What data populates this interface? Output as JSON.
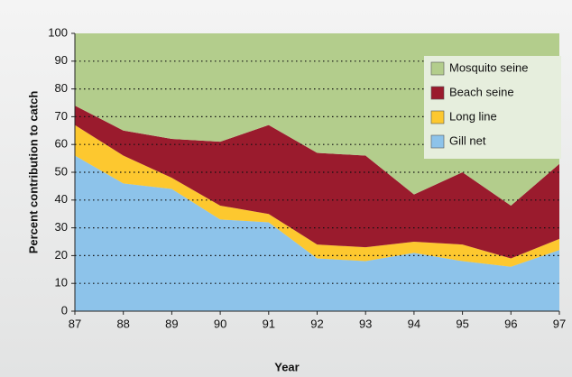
{
  "chart_data": {
    "type": "stacked_area",
    "x_label": "Year",
    "y_label": "Percent contribution to catch",
    "categories": [
      "87",
      "88",
      "89",
      "90",
      "91",
      "92",
      "93",
      "94",
      "95",
      "96",
      "97"
    ],
    "series": [
      {
        "name": "Gill net",
        "color": "#8dc3ea",
        "values": [
          56,
          46,
          44,
          33,
          32,
          19,
          18,
          21,
          18,
          16,
          22
        ]
      },
      {
        "name": "Long line",
        "color": "#fdc82f",
        "values": [
          11,
          10,
          4,
          5,
          3,
          5,
          5,
          4,
          6,
          3,
          4
        ]
      },
      {
        "name": "Beach seine",
        "color": "#9a1b2d",
        "values": [
          7,
          9,
          14,
          23,
          32,
          33,
          33,
          17,
          26,
          19,
          27
        ]
      },
      {
        "name": "Mosquito seine",
        "color": "#b3cd8c",
        "values": [
          26,
          35,
          38,
          39,
          33,
          43,
          44,
          58,
          50,
          62,
          47
        ]
      }
    ],
    "ylim": [
      0,
      100
    ],
    "yticks": [
      0,
      10,
      20,
      30,
      40,
      50,
      60,
      70,
      80,
      90,
      100
    ],
    "grid": true,
    "legend": "upper right"
  }
}
